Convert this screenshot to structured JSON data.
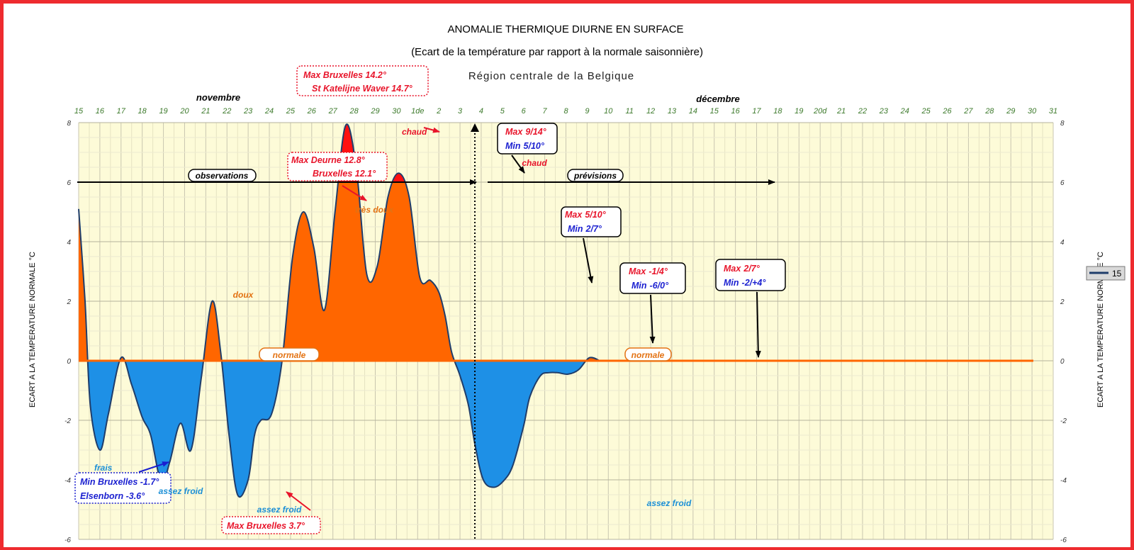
{
  "colors": {
    "frame": "#ee2b2f",
    "plot_bg": "#fdfbd8",
    "warm_fill": "#ff6600",
    "hot_fill": "#ff1010",
    "cold_fill": "#1e90e6",
    "curve": "#1f3d6b",
    "red_text": "#e8142a",
    "blue_text": "#1a1fd0",
    "orange_text": "#e37212",
    "cyan_text": "#1b8fd6"
  },
  "chart_data": {
    "type": "area",
    "title": "ANOMALIE THERMIQUE DIURNE EN SURFACE",
    "subtitle": "(Ecart de la température par rapport à la normale saisonnière)",
    "region": "Région centrale de la Belgique",
    "ylabel": "ECART A LA TEMPERATURE NORMALE °C",
    "ylim": [
      -6,
      8
    ],
    "yticks": [
      "8",
      "6",
      "4",
      "2",
      "0",
      "-2",
      "-4",
      "-6"
    ],
    "months": [
      "novembre",
      "décembre"
    ],
    "x_tick_labels": [
      "15",
      "16",
      "17",
      "18",
      "19",
      "20",
      "21",
      "22",
      "23",
      "24",
      "25",
      "26",
      "27",
      "28",
      "29",
      "30",
      "1de",
      "2",
      "3",
      "4",
      "5",
      "6",
      "7",
      "8",
      "9",
      "10",
      "11",
      "12",
      "13",
      "14",
      "15",
      "16",
      "17",
      "18",
      "19",
      "20d",
      "21",
      "22",
      "23",
      "24",
      "25",
      "26",
      "27",
      "28",
      "29",
      "30",
      "31"
    ],
    "legend_label": "15",
    "series": [
      {
        "x": [
          0,
          0.3,
          0.55,
          1.0,
          1.4,
          2.0,
          2.5,
          3.0,
          3.4,
          3.9,
          4.3,
          4.8,
          5.3,
          5.8,
          6.3,
          6.7,
          7.1,
          7.5,
          8.0,
          8.3,
          8.6,
          9.1,
          9.6,
          10.1,
          10.6,
          11.1,
          11.6,
          12.1,
          12.6,
          13.1,
          13.6,
          14.1,
          14.6,
          15.1,
          15.6,
          16.1,
          16.6,
          17.0,
          17.3,
          17.6,
          18.0,
          18.4,
          18.7,
          19.1,
          19.6,
          20.1,
          20.5,
          21.0,
          21.3,
          21.8,
          22.2,
          22.6,
          23.1,
          23.6,
          24.1,
          24.6,
          25.1,
          25.6,
          26.1,
          26.6,
          27.1,
          27.6,
          28.1,
          28.6,
          29.1,
          29.6,
          30.1,
          30.6,
          31.1,
          31.6,
          32.1,
          32.6,
          33.1,
          33.35,
          33.6,
          34.0,
          35.0,
          40.0,
          46.0
        ],
        "y": [
          5.1,
          2.0,
          -1.5,
          -3.0,
          -1.8,
          0.1,
          -0.8,
          -1.9,
          -2.5,
          -4.1,
          -3.4,
          -2.1,
          -3.0,
          -0.5,
          2.0,
          0.3,
          -2.5,
          -4.5,
          -4.0,
          -2.5,
          -2.0,
          -1.8,
          0.0,
          3.5,
          5.0,
          3.8,
          1.7,
          5.0,
          7.9,
          6.5,
          2.9,
          3.2,
          5.5,
          6.3,
          5.5,
          2.8,
          2.7,
          2.3,
          1.5,
          0.3,
          -0.5,
          -1.5,
          -2.8,
          -4.0,
          -4.25,
          -4.0,
          -3.5,
          -2.2,
          -1.2,
          -0.5,
          -0.4,
          -0.4,
          -0.45,
          -0.3,
          0.1,
          0.0,
          0.0,
          0.0,
          0.0,
          0.0,
          0.0,
          0.0,
          0.0,
          0.0,
          0.0,
          0.0,
          0.0,
          0.0,
          0.0,
          0.0,
          0.0,
          0.0,
          0.0,
          0.0,
          0.0,
          0.0,
          0.0,
          0.0,
          0.0
        ],
        "forecast_start_x": 19
      }
    ],
    "labels": {
      "observations": "observations",
      "previsions": "prévisions",
      "chaud": "chaud",
      "chaud2": "chaud",
      "tres_doux": "très doux",
      "doux": "doux",
      "normale": "normale",
      "normale2": "normale",
      "frais": "frais",
      "assez_froid": "assez froid",
      "assez_froid2": "assez froid",
      "assez_froid3": "assez froid"
    },
    "obs_boxes": {
      "max_bxl_line1": "Max Bruxelles 14.2°",
      "max_bxl_line2": "St Katelijne Waver 14.7°",
      "max_deurne_line1": "Max Deurne 12.8°",
      "max_deurne_line2": "Bruxelles 12.1°",
      "min_bxl_line1": "Min Bruxelles -1.7°",
      "min_bxl_line2": "Elsenborn -3.6°",
      "max_bxl37": "Max Bruxelles 3.7°"
    },
    "forecast_boxes": [
      {
        "max_label": "Max",
        "max_value": "9/14°",
        "min_label": "Min",
        "min_value": "5/10°"
      },
      {
        "max_label": "Max",
        "max_value": "5/10°",
        "min_label": "Min",
        "min_value": "2/7°"
      },
      {
        "max_label": "Max",
        "max_value": "-1/4°",
        "min_label": "Min",
        "min_value": "-6/0°"
      },
      {
        "max_label": "Max",
        "max_value": "2/7°",
        "min_label": "Min",
        "min_value": "-2/+4°"
      }
    ]
  }
}
